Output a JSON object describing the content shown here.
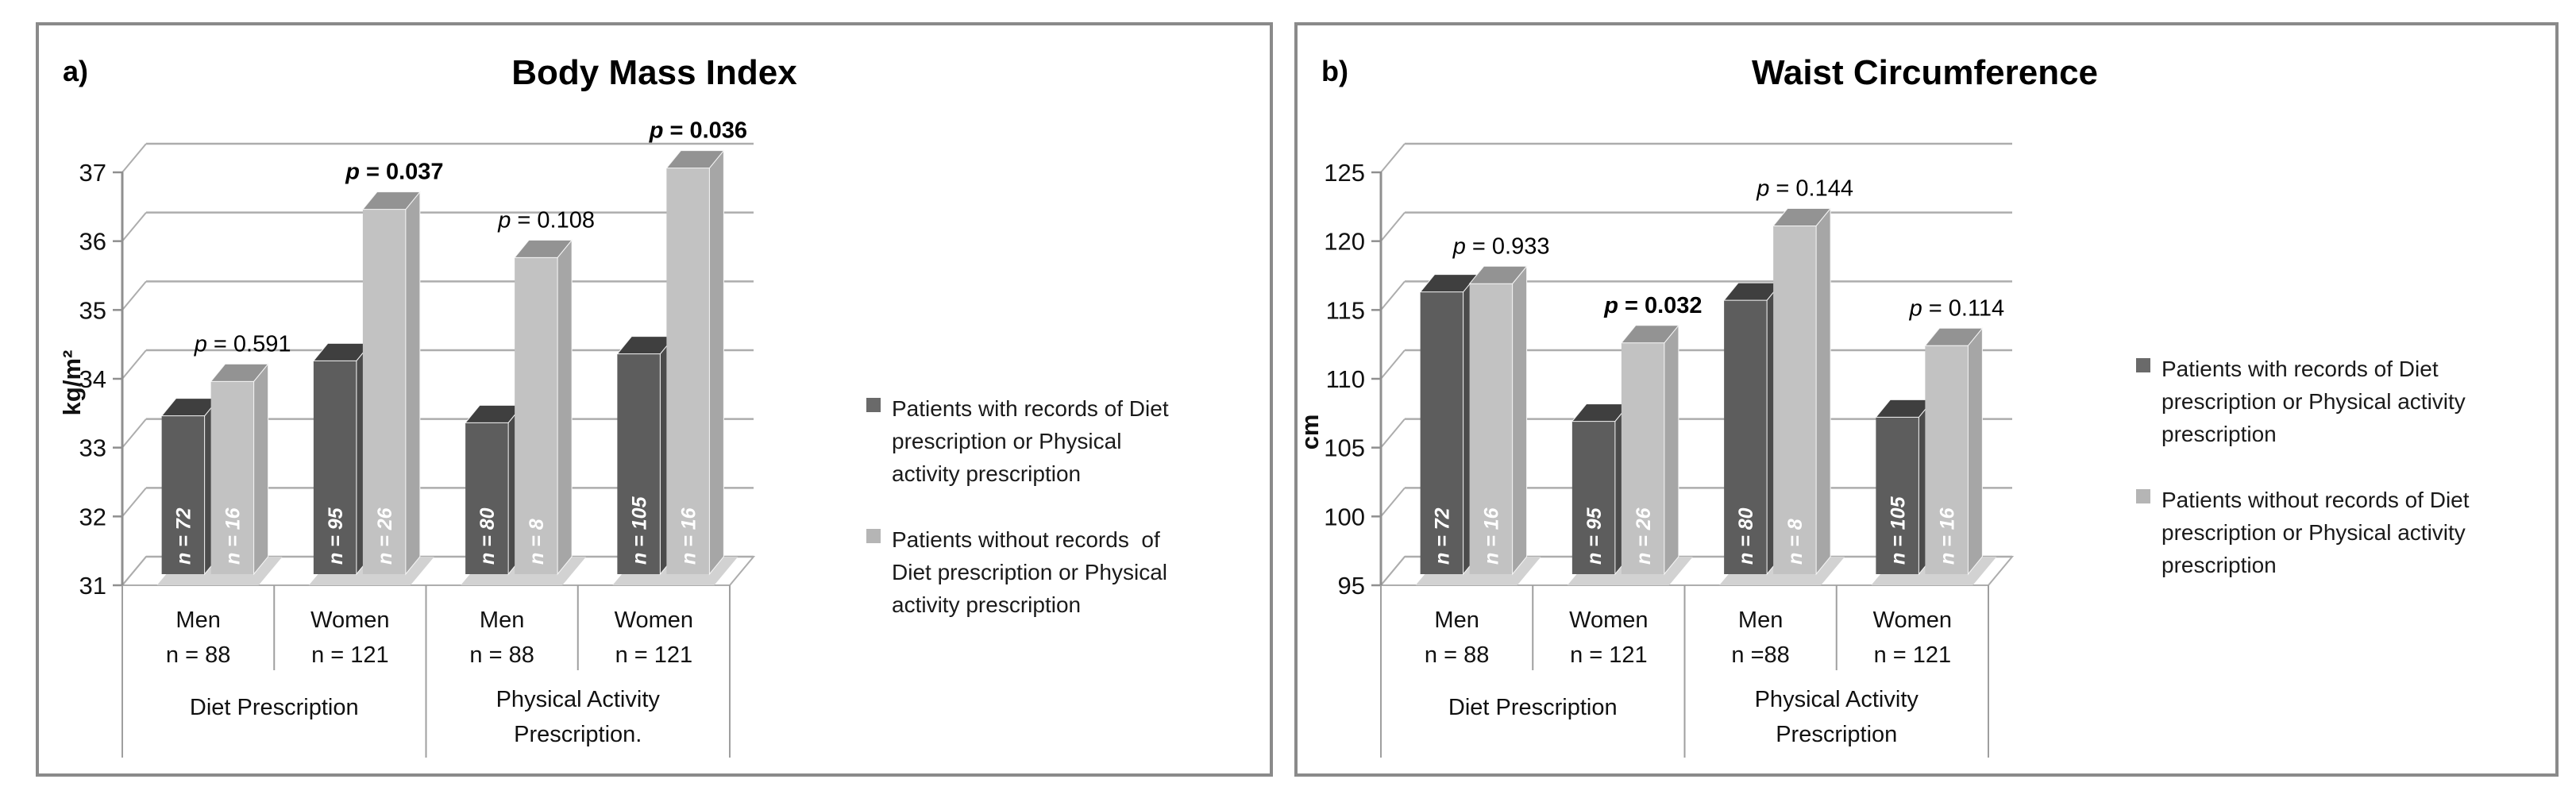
{
  "figure_type": "two_panel_3d_bar_figure",
  "colors": {
    "with_front": "#5d5d5d",
    "with_top": "#3f3f3f",
    "with_side": "#4b4b4b",
    "without_front": "#c2c2c2",
    "without_top": "#939393",
    "without_side": "#a6a6a6",
    "swatch_with": "#6a6a6a",
    "swatch_without": "#b5b5b5",
    "gridline": "#adadad",
    "axis": "#8f8f8f",
    "separator": "#9f9f9f",
    "floor_shadow": "#d2d2d2",
    "panel_border": "#8a8a8a",
    "face_edge": "#f7f7f7"
  },
  "chart_data": [
    {
      "type": "bar",
      "panel_label": "a)",
      "title": "Body Mass Index",
      "ylabel": "kg/m²",
      "ylim": [
        31,
        37
      ],
      "ytick_step": 1,
      "grid": true,
      "legend_position": "right",
      "categories": [
        [
          "Men",
          "n = 88"
        ],
        [
          "Women",
          "n = 121"
        ],
        [
          "Men",
          "n = 88"
        ],
        [
          "Women",
          "n = 121"
        ]
      ],
      "group_labels": [
        "Diet Prescription",
        "Physical Activity\nPrescription."
      ],
      "series": [
        {
          "name": "Patients with records of Diet prescription or Physical activity prescription",
          "values": [
            33.3,
            34.1,
            33.2,
            34.2
          ],
          "bar_labels": [
            "n = 72",
            "n = 95",
            "n = 80",
            "n = 105"
          ]
        },
        {
          "name": "Patients without records of Diet prescription or Physical activity prescription",
          "values": [
            33.8,
            36.3,
            35.6,
            36.9
          ],
          "bar_labels": [
            "n = 16",
            "n = 26",
            "n = 8",
            "n = 16"
          ]
        }
      ],
      "p_values": [
        {
          "p": "0.591",
          "bold": false
        },
        {
          "p": "0.037",
          "bold": true
        },
        {
          "p": "0.108",
          "bold": false
        },
        {
          "p": "0.036",
          "bold": true
        }
      ],
      "legend": [
        {
          "swatch": "swatch_with",
          "lines": [
            "Patients with records of Diet",
            "prescription or Physical",
            "activity prescription"
          ]
        },
        {
          "swatch": "swatch_without",
          "lines": [
            "Patients without records  of",
            "Diet prescription or Physical",
            "activity prescription"
          ]
        }
      ]
    },
    {
      "type": "bar",
      "panel_label": "b)",
      "title": "Waist Circumference",
      "ylabel": "cm",
      "ylim": [
        95,
        125
      ],
      "ytick_step": 5,
      "grid": true,
      "legend_position": "right",
      "categories": [
        [
          "Men",
          "n = 88"
        ],
        [
          "Women",
          "n = 121"
        ],
        [
          "Men",
          "n =88"
        ],
        [
          "Women",
          "n = 121"
        ]
      ],
      "group_labels": [
        "Diet Prescription",
        "Physical Activity\nPrescription"
      ],
      "series": [
        {
          "name": "Patients with records of Diet prescription or Physical activity prescription",
          "values": [
            115.5,
            106.1,
            114.9,
            106.4
          ],
          "bar_labels": [
            "n = 72",
            "n = 95",
            "n = 80",
            "n = 105"
          ]
        },
        {
          "name": "Patients without records of Diet prescription or Physical activity prescription",
          "values": [
            116.1,
            111.8,
            120.3,
            111.6
          ],
          "bar_labels": [
            "n = 16",
            "n = 26",
            "n = 8",
            "n = 16"
          ]
        }
      ],
      "p_values": [
        {
          "p": "0.933",
          "bold": false
        },
        {
          "p": "0.032",
          "bold": true
        },
        {
          "p": "0.144",
          "bold": false
        },
        {
          "p": "0.114",
          "bold": false
        }
      ],
      "legend": [
        {
          "swatch": "swatch_with",
          "lines": [
            "Patients with records of Diet",
            "prescription or Physical activity",
            "prescription"
          ]
        },
        {
          "swatch": "swatch_without",
          "lines": [
            "Patients without records of Diet",
            "prescription or Physical activity",
            "prescription"
          ]
        }
      ]
    }
  ]
}
